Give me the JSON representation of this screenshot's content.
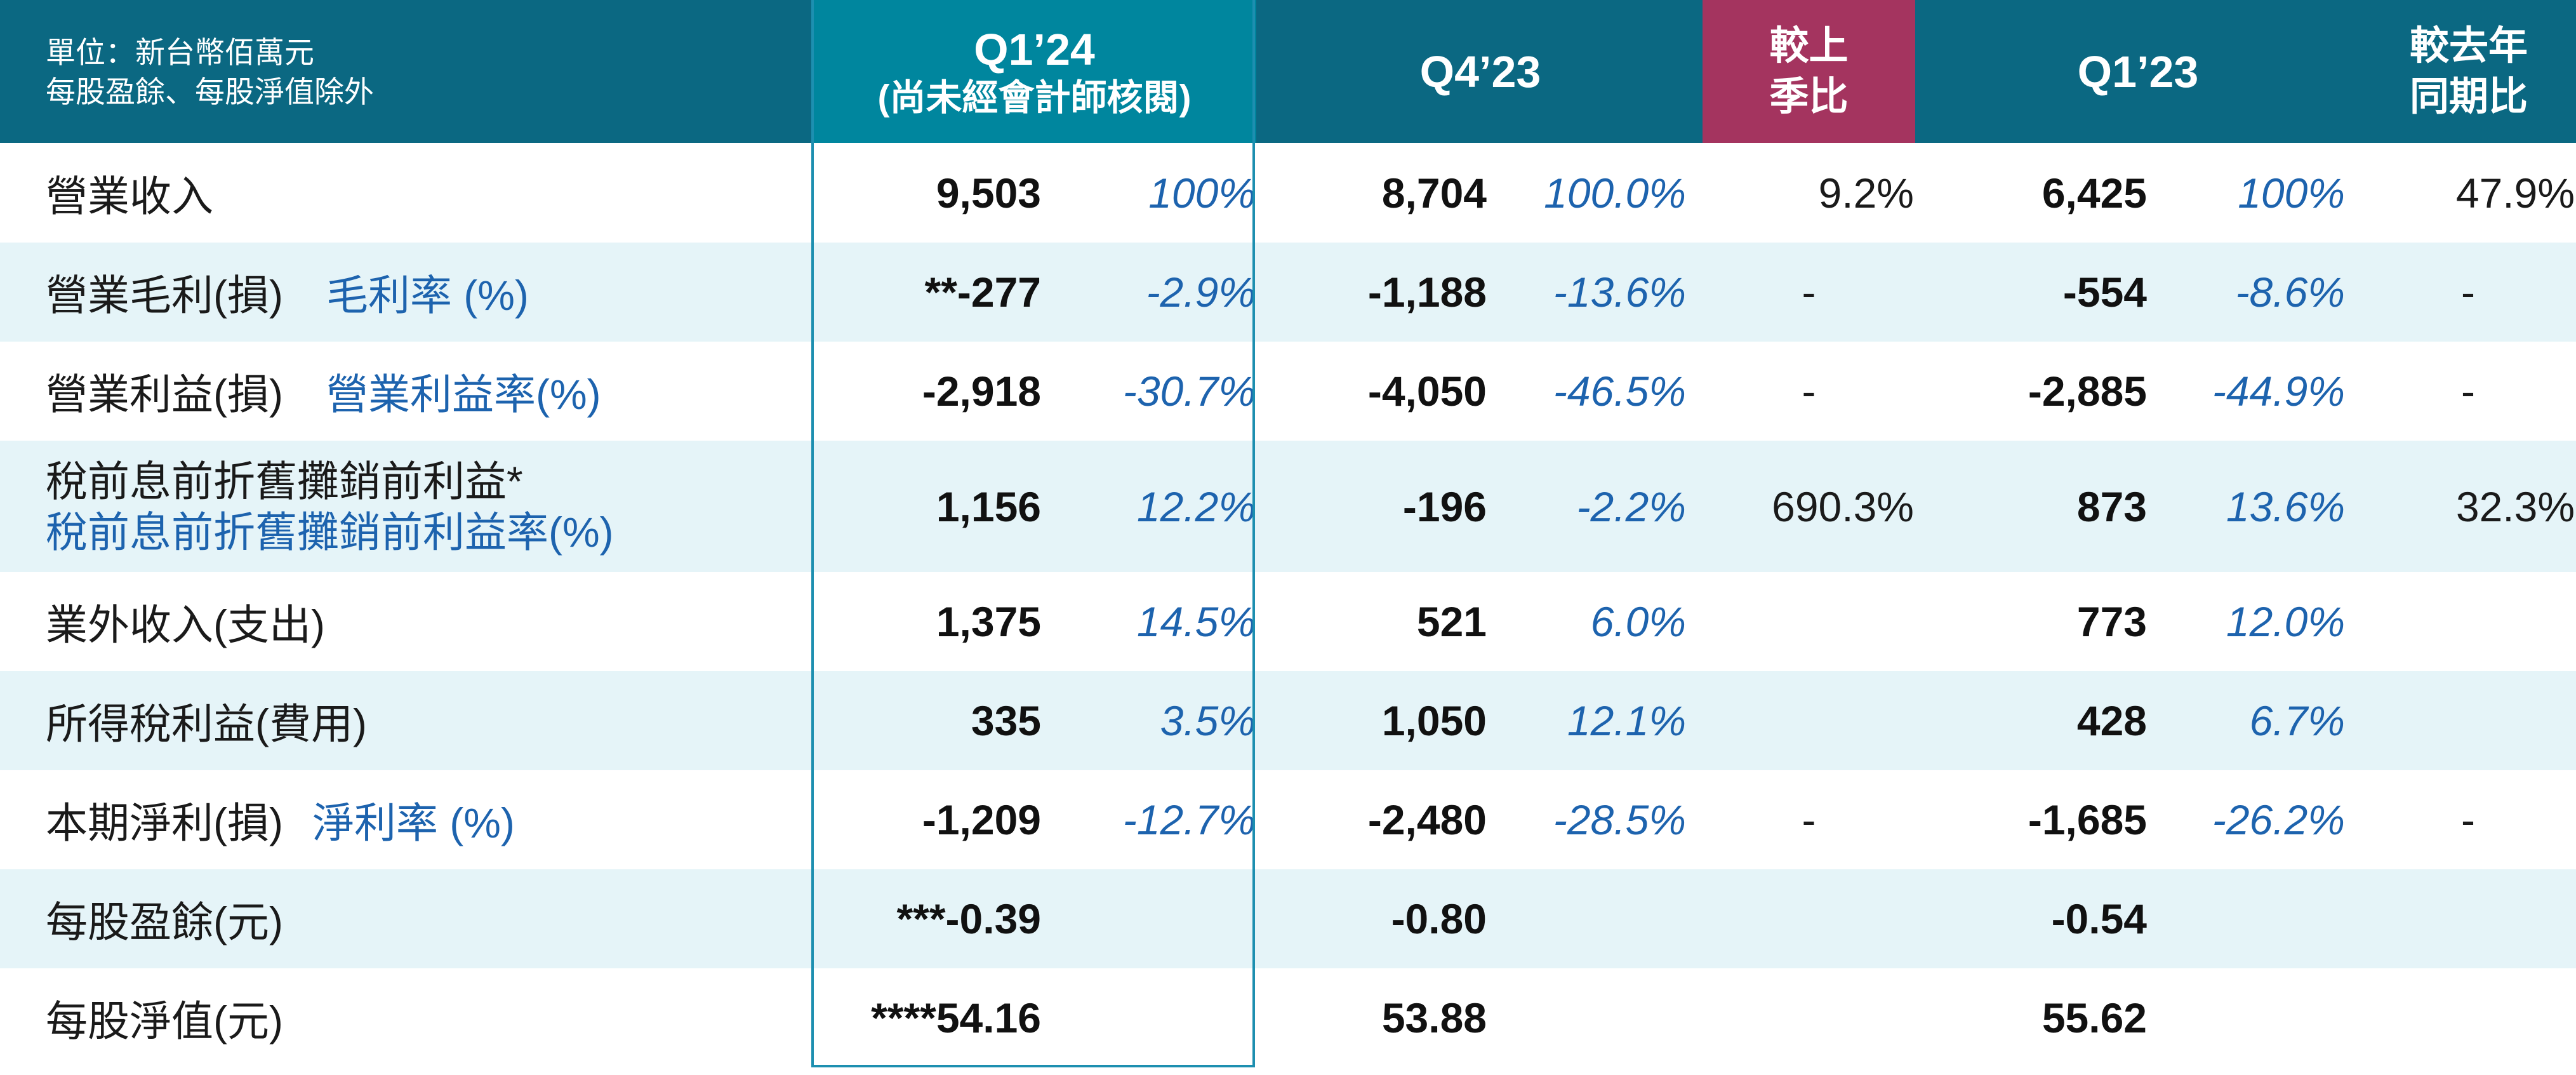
{
  "header": {
    "unit_line1": "單位：新台幣佰萬元",
    "unit_line2": "每股盈餘、每股淨值除外",
    "current_period": "Q1’24",
    "current_note": "(尚未經會計師核閱)",
    "prior_quarter": "Q4’23",
    "qoq_line1": "較上",
    "qoq_line2": "季比",
    "prior_year_quarter": "Q1’23",
    "yoy_line1": "較去年",
    "yoy_line2": "同期比"
  },
  "colors": {
    "header_bg": "#0b6882",
    "current_header_bg": "#00869e",
    "qoq_header_bg": "#a4345f",
    "alt_row_bg": "#e5f4f8",
    "ratio_text": "#1d63ae",
    "frame": "#1d8fb0"
  },
  "rows": [
    {
      "label": "營業收入",
      "ratio_label": "",
      "q1_24": "9,503",
      "q1_24_pct": "100%",
      "q4_23": "8,704",
      "q4_23_pct": "100.0%",
      "qoq": "9.2%",
      "q1_23": "6,425",
      "q1_23_pct": "100%",
      "yoy": "47.9%"
    },
    {
      "label": "營業毛利(損)",
      "ratio_label": "毛利率 (%)",
      "q1_24": "**-277",
      "q1_24_pct": "-2.9%",
      "q4_23": "-1,188",
      "q4_23_pct": "-13.6%",
      "qoq": "-",
      "q1_23": "-554",
      "q1_23_pct": "-8.6%",
      "yoy": "-"
    },
    {
      "label": "營業利益(損)",
      "ratio_label": "營業利益率(%)",
      "q1_24": "-2,918",
      "q1_24_pct": "-30.7%",
      "q4_23": "-4,050",
      "q4_23_pct": "-46.5%",
      "qoq": "-",
      "q1_23": "-2,885",
      "q1_23_pct": "-44.9%",
      "yoy": "-"
    },
    {
      "label": "稅前息前折舊攤銷前利益*",
      "ratio_label": "稅前息前折舊攤銷前利益率(%)",
      "q1_24": "1,156",
      "q1_24_pct": "12.2%",
      "q4_23": "-196",
      "q4_23_pct": "-2.2%",
      "qoq": "690.3%",
      "q1_23": "873",
      "q1_23_pct": "13.6%",
      "yoy": "32.3%"
    },
    {
      "label": "業外收入(支出)",
      "ratio_label": "",
      "q1_24": "1,375",
      "q1_24_pct": "14.5%",
      "q4_23": "521",
      "q4_23_pct": "6.0%",
      "qoq": "",
      "q1_23": "773",
      "q1_23_pct": "12.0%",
      "yoy": ""
    },
    {
      "label": "所得稅利益(費用)",
      "ratio_label": "",
      "q1_24": "335",
      "q1_24_pct": "3.5%",
      "q4_23": "1,050",
      "q4_23_pct": "12.1%",
      "qoq": "",
      "q1_23": "428",
      "q1_23_pct": "6.7%",
      "yoy": ""
    },
    {
      "label": "本期淨利(損)",
      "ratio_label": "淨利率 (%)",
      "q1_24": "-1,209",
      "q1_24_pct": "-12.7%",
      "q4_23": "-2,480",
      "q4_23_pct": "-28.5%",
      "qoq": "-",
      "q1_23": "-1,685",
      "q1_23_pct": "-26.2%",
      "yoy": "-"
    },
    {
      "label": "每股盈餘(元)",
      "ratio_label": "",
      "q1_24": "***-0.39",
      "q1_24_pct": "",
      "q4_23": "-0.80",
      "q4_23_pct": "",
      "qoq": "",
      "q1_23": "-0.54",
      "q1_23_pct": "",
      "yoy": ""
    },
    {
      "label": "每股淨值(元)",
      "ratio_label": "",
      "q1_24": "****54.16",
      "q1_24_pct": "",
      "q4_23": "53.88",
      "q4_23_pct": "",
      "qoq": "",
      "q1_23": "55.62",
      "q1_23_pct": "",
      "yoy": ""
    }
  ]
}
